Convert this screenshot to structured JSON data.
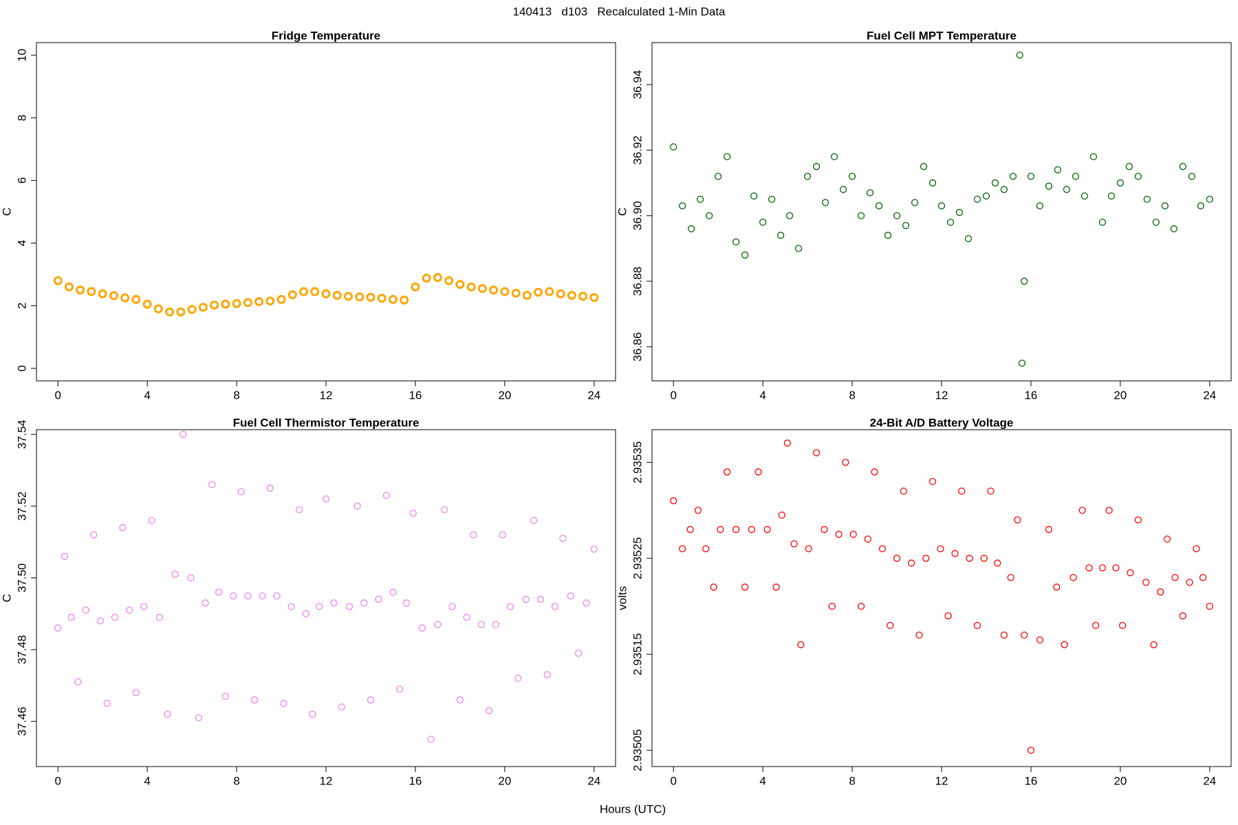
{
  "title": "140413   d103   Recalculated 1-Min Data",
  "x_label": "Hours (UTC)",
  "chart_data": [
    {
      "type": "scatter",
      "title": "Fridge Temperature",
      "y_label": "C",
      "color": "#ffa500",
      "xlim": [
        -0.96,
        24.96
      ],
      "xticks": [
        0,
        4,
        8,
        12,
        16,
        20,
        24
      ],
      "ylim": [
        -0.4,
        10.4
      ],
      "yticks": [
        0,
        2,
        4,
        6,
        8,
        10
      ],
      "x": [
        0,
        0.5,
        1,
        1.5,
        2,
        2.5,
        3,
        3.5,
        4,
        4.5,
        5,
        5.5,
        6,
        6.5,
        7,
        7.5,
        8,
        8.5,
        9,
        9.5,
        10,
        10.5,
        11,
        11.5,
        12,
        12.5,
        13,
        13.5,
        14,
        14.5,
        15,
        15.5,
        16,
        16.5,
        17,
        17.5,
        18,
        18.5,
        19,
        19.5,
        20,
        20.5,
        21,
        21.5,
        22,
        22.5,
        23,
        23.5,
        24
      ],
      "values": [
        2.8,
        2.6,
        2.5,
        2.45,
        2.38,
        2.32,
        2.25,
        2.2,
        2.05,
        1.9,
        1.8,
        1.8,
        1.88,
        1.95,
        2.02,
        2.05,
        2.07,
        2.1,
        2.13,
        2.15,
        2.2,
        2.35,
        2.45,
        2.45,
        2.38,
        2.33,
        2.3,
        2.28,
        2.27,
        2.24,
        2.2,
        2.18,
        2.6,
        2.88,
        2.9,
        2.8,
        2.68,
        2.6,
        2.55,
        2.5,
        2.45,
        2.4,
        2.33,
        2.43,
        2.45,
        2.38,
        2.33,
        2.3,
        2.26
      ]
    },
    {
      "type": "scatter",
      "title": "Fuel Cell MPT Temperature",
      "y_label": "C",
      "color": "#006400",
      "xlim": [
        -0.96,
        24.96
      ],
      "xticks": [
        0,
        4,
        8,
        12,
        16,
        20,
        24
      ],
      "ylim": [
        36.8496,
        36.9528
      ],
      "yticks": [
        36.86,
        36.88,
        {
          "value": 36.9,
          "label": "36.90"
        },
        36.92,
        36.94
      ],
      "x": [
        0,
        0.4,
        0.8,
        1.2,
        1.6,
        2.0,
        2.4,
        2.8,
        3.2,
        3.6,
        4.0,
        4.4,
        4.8,
        5.2,
        5.6,
        6.0,
        6.4,
        6.8,
        7.2,
        7.6,
        8.0,
        8.4,
        8.8,
        9.2,
        9.6,
        10.0,
        10.4,
        10.8,
        11.2,
        11.6,
        12.0,
        12.4,
        12.8,
        13.2,
        13.6,
        14.0,
        14.4,
        14.8,
        15.2,
        15.5,
        15.6,
        15.7,
        16.0,
        16.4,
        16.8,
        17.2,
        17.6,
        18.0,
        18.4,
        18.8,
        19.2,
        19.6,
        20.0,
        20.4,
        20.8,
        21.2,
        21.6,
        22.0,
        22.4,
        22.8,
        23.2,
        23.6,
        24.0
      ],
      "values": [
        36.921,
        36.903,
        36.896,
        36.905,
        36.9,
        36.912,
        36.918,
        36.892,
        36.888,
        36.906,
        36.898,
        36.905,
        36.894,
        36.9,
        36.89,
        36.912,
        36.915,
        36.904,
        36.918,
        36.908,
        36.912,
        36.9,
        36.907,
        36.903,
        36.894,
        36.9,
        36.897,
        36.904,
        36.915,
        36.91,
        36.903,
        36.898,
        36.901,
        36.893,
        36.905,
        36.906,
        36.91,
        36.908,
        36.912,
        36.949,
        36.855,
        36.88,
        36.912,
        36.903,
        36.909,
        36.914,
        36.908,
        36.912,
        36.906,
        36.918,
        36.898,
        36.906,
        36.91,
        36.915,
        36.912,
        36.905,
        36.898,
        36.903,
        36.896,
        36.915,
        36.912,
        36.903,
        36.905
      ]
    },
    {
      "type": "scatter",
      "title": "Fuel Cell Thermistor Temperature",
      "y_label": "C",
      "color": "#ee82ee",
      "xlim": [
        -0.96,
        24.96
      ],
      "xticks": [
        0,
        4,
        8,
        12,
        16,
        20,
        24
      ],
      "ylim": [
        37.4474,
        37.5413
      ],
      "yticks": [
        37.46,
        37.48,
        {
          "value": 37.5,
          "label": "37.50"
        },
        37.52,
        37.54
      ],
      "x": [
        0,
        0.3,
        0.6,
        0.9,
        1.25,
        1.6,
        1.9,
        2.2,
        2.55,
        2.9,
        3.2,
        3.5,
        3.85,
        4.2,
        4.55,
        4.9,
        5.25,
        5.6,
        5.95,
        6.3,
        6.6,
        6.9,
        7.2,
        7.5,
        7.85,
        8.2,
        8.5,
        8.8,
        9.15,
        9.5,
        9.8,
        10.1,
        10.45,
        10.8,
        11.1,
        11.4,
        11.7,
        12.0,
        12.35,
        12.7,
        13.05,
        13.4,
        13.7,
        14.0,
        14.35,
        14.7,
        15.0,
        15.3,
        15.6,
        15.9,
        16.3,
        16.7,
        17.0,
        17.3,
        17.65,
        18.0,
        18.3,
        18.6,
        18.95,
        19.3,
        19.6,
        19.9,
        20.25,
        20.6,
        20.95,
        21.3,
        21.6,
        21.9,
        22.25,
        22.6,
        22.95,
        23.3,
        23.65,
        24.0
      ],
      "values": [
        37.486,
        37.506,
        37.489,
        37.471,
        37.491,
        37.512,
        37.488,
        37.465,
        37.489,
        37.514,
        37.491,
        37.468,
        37.492,
        37.516,
        37.489,
        37.462,
        37.501,
        37.54,
        37.5,
        37.461,
        37.493,
        37.526,
        37.496,
        37.467,
        37.495,
        37.524,
        37.495,
        37.466,
        37.495,
        37.525,
        37.495,
        37.465,
        37.492,
        37.519,
        37.49,
        37.462,
        37.492,
        37.522,
        37.493,
        37.464,
        37.492,
        37.52,
        37.493,
        37.466,
        37.494,
        37.523,
        37.496,
        37.469,
        37.493,
        37.518,
        37.486,
        37.455,
        37.487,
        37.519,
        37.492,
        37.466,
        37.489,
        37.512,
        37.487,
        37.463,
        37.487,
        37.512,
        37.492,
        37.472,
        37.494,
        37.516,
        37.494,
        37.473,
        37.492,
        37.511,
        37.495,
        37.479,
        37.493,
        37.508
      ]
    },
    {
      "type": "scatter",
      "title": "24-Bit A/D Battery Voltage",
      "y_label": "volts",
      "color": "#ff0000",
      "xlim": [
        -0.96,
        24.96
      ],
      "xticks": [
        0,
        4,
        8,
        12,
        16,
        20,
        24
      ],
      "ylim": [
        2.935033,
        2.935384
      ],
      "yticks": [
        2.93505,
        2.93515,
        2.93525,
        2.93535
      ],
      "x": [
        0,
        0.4,
        0.75,
        1.1,
        1.45,
        1.8,
        2.1,
        2.4,
        2.8,
        3.2,
        3.5,
        3.8,
        4.2,
        4.6,
        4.85,
        5.1,
        5.4,
        5.7,
        6.05,
        6.4,
        6.75,
        7.1,
        7.4,
        7.7,
        8.05,
        8.4,
        8.7,
        9.0,
        9.35,
        9.7,
        10.0,
        10.3,
        10.65,
        11.0,
        11.3,
        11.6,
        11.95,
        12.3,
        12.6,
        12.9,
        13.25,
        13.6,
        13.9,
        14.2,
        14.5,
        14.8,
        15.1,
        15.4,
        15.7,
        16.0,
        16.4,
        16.8,
        17.15,
        17.5,
        17.9,
        18.3,
        18.6,
        18.9,
        19.2,
        19.5,
        19.8,
        20.1,
        20.45,
        20.8,
        21.15,
        21.5,
        21.8,
        22.1,
        22.45,
        22.8,
        23.1,
        23.4,
        23.7,
        24.0
      ],
      "values": [
        2.93531,
        2.93526,
        2.93528,
        2.9353,
        2.93526,
        2.93522,
        2.93528,
        2.93534,
        2.93528,
        2.93522,
        2.93528,
        2.93534,
        2.93528,
        2.93522,
        2.935295,
        2.93537,
        2.935265,
        2.93516,
        2.93526,
        2.93536,
        2.93528,
        2.9352,
        2.935275,
        2.93535,
        2.935275,
        2.9352,
        2.93527,
        2.93534,
        2.93526,
        2.93518,
        2.93525,
        2.93532,
        2.935245,
        2.93517,
        2.93525,
        2.93533,
        2.93526,
        2.93519,
        2.935255,
        2.93532,
        2.93525,
        2.93518,
        2.93525,
        2.93532,
        2.935245,
        2.93517,
        2.93523,
        2.93529,
        2.93517,
        2.93505,
        2.935165,
        2.93528,
        2.93522,
        2.93516,
        2.93523,
        2.9353,
        2.93524,
        2.93518,
        2.93524,
        2.9353,
        2.93524,
        2.93518,
        2.935235,
        2.93529,
        2.935225,
        2.93516,
        2.935215,
        2.93527,
        2.93523,
        2.93519,
        2.935225,
        2.93526,
        2.93523,
        2.9352
      ]
    }
  ]
}
